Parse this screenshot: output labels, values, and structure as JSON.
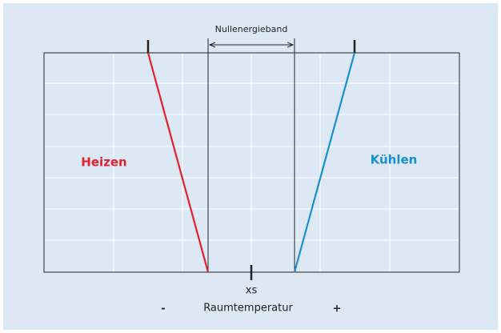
{
  "header": {
    "band_label": "Nullenergieband"
  },
  "zones": {
    "heating": "Heizen",
    "cooling": "Kühlen"
  },
  "axis": {
    "setpoint": "xs",
    "minus": "-",
    "label": "Raumtemperatur",
    "plus": "+"
  }
}
